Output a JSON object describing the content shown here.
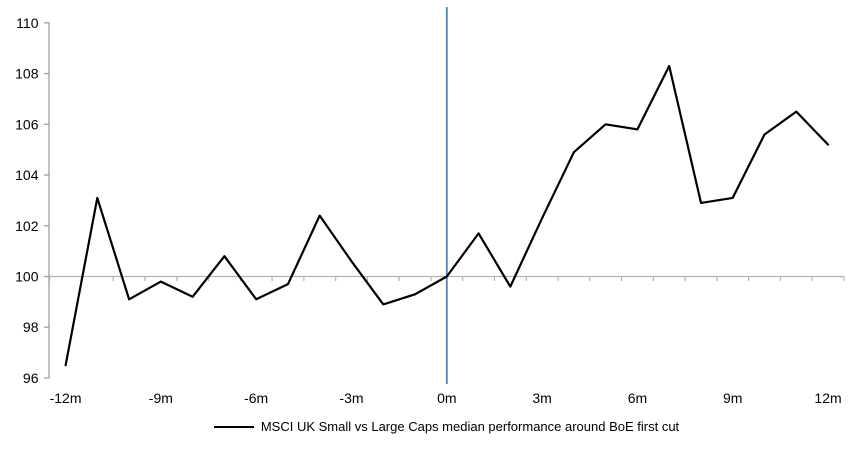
{
  "chart_data": {
    "type": "line",
    "x": [
      -12,
      -11,
      -10,
      -9,
      -8,
      -7,
      -6,
      -5,
      -4,
      -3,
      -2,
      -1,
      0,
      1,
      2,
      3,
      4,
      5,
      6,
      7,
      8,
      9,
      10,
      11,
      12
    ],
    "series": [
      {
        "name": "MSCI UK Small vs Large Caps median performance around BoE first cut",
        "color": "#000000",
        "values": [
          96.5,
          103.1,
          99.1,
          99.8,
          99.2,
          100.8,
          99.1,
          99.7,
          102.4,
          100.6,
          98.9,
          99.3,
          100.0,
          101.7,
          99.6,
          102.3,
          104.9,
          106.0,
          105.8,
          108.3,
          102.9,
          103.1,
          105.6,
          106.5,
          105.2
        ]
      }
    ],
    "xlabel": "",
    "ylabel": "",
    "xlim": [
      -12.5,
      12.5
    ],
    "ylim": [
      96,
      110
    ],
    "y_ticks": [
      "96",
      "98",
      "100",
      "102",
      "104",
      "106",
      "108",
      "110"
    ],
    "y_tick_values": [
      96,
      98,
      100,
      102,
      104,
      106,
      108,
      110
    ],
    "x_tick_labels": [
      "-12m",
      "-9m",
      "-6m",
      "-3m",
      "0m",
      "3m",
      "6m",
      "9m",
      "12m"
    ],
    "x_tick_label_positions": [
      -12,
      -9,
      -6,
      -3,
      0,
      3,
      6,
      9,
      12
    ],
    "grid": false,
    "legend_position": "bottom-center",
    "reference_lines": {
      "horizontal_at_y": 100,
      "vertical_at_x": 0
    }
  },
  "colors": {
    "series_line": "#000000",
    "event_line_blue": "#4f81bd",
    "baseline_gray": "#b3b3b3",
    "axis_gray": "#9e9e9e",
    "text": "#000000",
    "background": "#ffffff"
  }
}
